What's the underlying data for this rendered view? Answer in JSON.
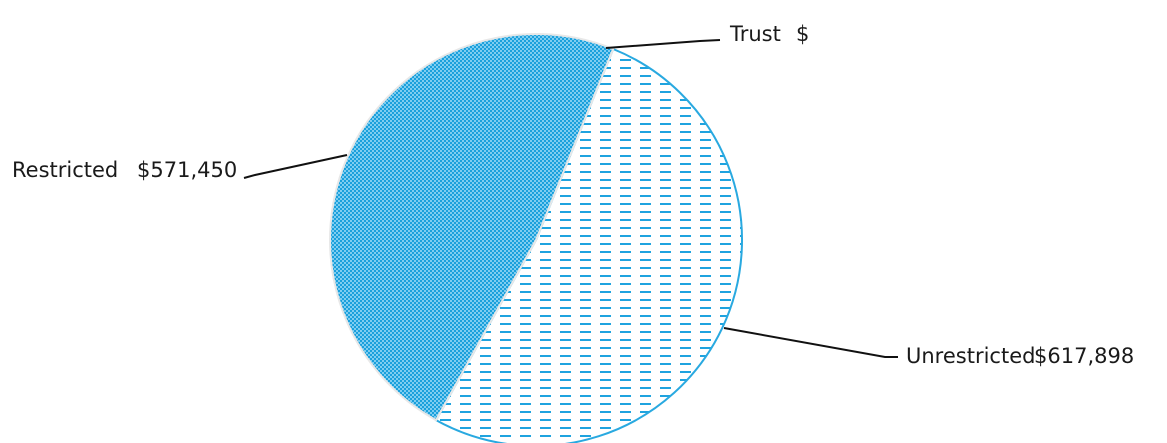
{
  "chart_data": {
    "type": "pie",
    "slices": [
      {
        "name": "Restricted",
        "label": "Restricted",
        "value_label": "$571,450",
        "value": 571450,
        "color": "#4db8e8",
        "pattern": "dotted"
      },
      {
        "name": "Unrestricted",
        "label": "Unrestricted",
        "value_label": "$617,898",
        "value": 617898,
        "color": "#29a9e0",
        "pattern": "dashed"
      },
      {
        "name": "Trust",
        "label": "Trust",
        "value_label": "$",
        "value": 0,
        "color": "#29a9e0",
        "pattern": "none"
      }
    ],
    "legend": "none",
    "data_labels": "outside-with-leader-lines"
  }
}
